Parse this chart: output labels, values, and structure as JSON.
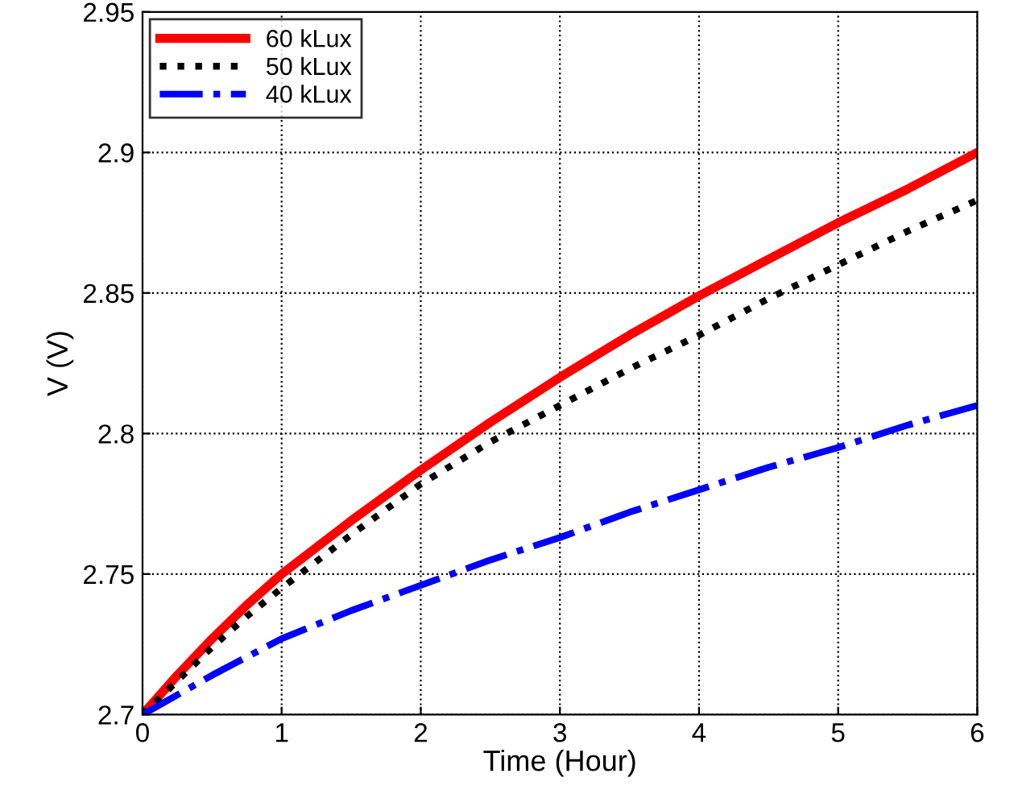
{
  "chart_data": {
    "type": "line",
    "xlabel": "Time (Hour)",
    "ylabel": "V (V)",
    "xlim": [
      0,
      6
    ],
    "ylim": [
      2.7,
      2.95
    ],
    "xticks": [
      0,
      1,
      2,
      3,
      4,
      5,
      6
    ],
    "yticks": [
      2.7,
      2.75,
      2.8,
      2.85,
      2.9,
      2.95
    ],
    "grid": true,
    "legend": "top left",
    "series": [
      {
        "name": "60 kLux",
        "color": "#ff0000",
        "line_style": "solid",
        "x": [
          0,
          0.25,
          0.5,
          0.75,
          1,
          1.5,
          2,
          2.5,
          3,
          3.5,
          4,
          4.5,
          5,
          5.5,
          6
        ],
        "values": [
          2.7,
          2.714,
          2.727,
          2.739,
          2.75,
          2.769,
          2.787,
          2.804,
          2.82,
          2.835,
          2.849,
          2.862,
          2.875,
          2.887,
          2.9
        ]
      },
      {
        "name": "50 kLux",
        "color": "#000000",
        "line_style": "dotted",
        "x": [
          0,
          0.25,
          0.5,
          0.75,
          1,
          1.5,
          2,
          2.5,
          3,
          3.5,
          4,
          4.5,
          5,
          5.5,
          6
        ],
        "values": [
          2.7,
          2.712,
          2.724,
          2.735,
          2.745,
          2.764,
          2.782,
          2.797,
          2.81,
          2.823,
          2.835,
          2.848,
          2.86,
          2.872,
          2.883
        ]
      },
      {
        "name": "40 kLux",
        "color": "#0000ff",
        "line_style": "dashed",
        "x": [
          0,
          0.5,
          1,
          1.5,
          2,
          2.5,
          3,
          3.5,
          4,
          4.5,
          5,
          5.5,
          6
        ],
        "values": [
          2.7,
          2.714,
          2.727,
          2.737,
          2.746,
          2.755,
          2.763,
          2.772,
          2.78,
          2.788,
          2.795,
          2.803,
          2.81
        ]
      }
    ]
  }
}
